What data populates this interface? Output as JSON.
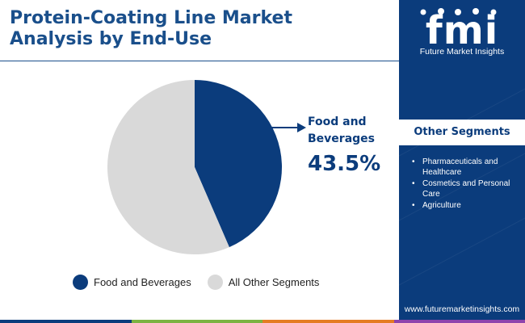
{
  "title_lines": [
    "Protein-Coating Line Market",
    "Analysis by End-Use"
  ],
  "logo": {
    "mark_text": "fmi",
    "subtitle": "Future Market Insights"
  },
  "other_segments": {
    "heading": "Other Segments",
    "bullet": "•",
    "items": [
      "Pharmaceuticals and Healthcare",
      "Cosmetics and Personal Care",
      "Agriculture"
    ]
  },
  "website": "www.futuremarketinsights.com",
  "callout": {
    "label_lines": [
      "Food and",
      "Beverages"
    ],
    "value": "43.5%"
  },
  "chart_data": {
    "type": "pie",
    "title": "Protein-Coating Line Market Analysis by End-Use",
    "slices": [
      {
        "label": "Food and Beverages",
        "value": 43.5,
        "color": "#0b3c7c"
      },
      {
        "label": "All Other Segments",
        "value": 56.5,
        "color": "#d9d9d9"
      }
    ],
    "start_angle_deg": 0,
    "direction": "clockwise",
    "legend_position": "bottom"
  },
  "colors": {
    "brand_blue": "#0b3c7c",
    "title_blue": "#1a4f8b",
    "footer_stripes": [
      "#0b3c7c",
      "#7cb342",
      "#e57c23",
      "#8e44ad"
    ]
  }
}
